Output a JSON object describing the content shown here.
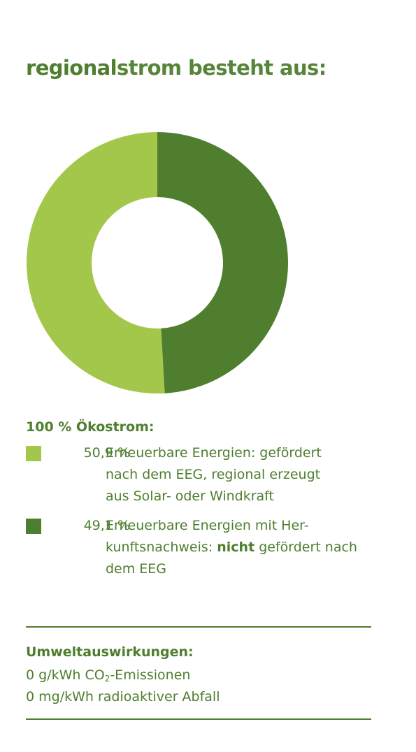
{
  "title": {
    "bold": "regional",
    "rest": "strom besteht aus:"
  },
  "colors": {
    "light_green": "#a3c74a",
    "dark_green": "#4e7e2e",
    "text": "#4e7e2e"
  },
  "chart_data": {
    "type": "pie",
    "donut": true,
    "title": "",
    "categories": [
      "Erneuerbare Energien: gefördert nach dem EEG, regional erzeugt aus Solar- oder Windkraft",
      "Erneuerbare Energien mit Herkunftsnachweis: nicht gefördert nach dem EEG"
    ],
    "values": [
      50.9,
      49.1
    ],
    "unit": "%",
    "colors": [
      "#a3c74a",
      "#4e7e2e"
    ]
  },
  "legend": {
    "heading": "100 % Ökostrom:",
    "items": [
      {
        "percent": "50,9 %",
        "line1": "Erneuerbare Energien: gefördert",
        "line2": "nach dem EEG, regional erzeugt",
        "line3": "aus Solar- oder Windkraft"
      },
      {
        "percent": "49,1 %",
        "line1": "Erneuerbare Energien mit Her-",
        "line2a": "kunftsnachweis: ",
        "line2b": "nicht",
        "line2c": " gefördert nach",
        "line3": "dem EEG"
      }
    ]
  },
  "environment": {
    "heading": "Umweltauswirkungen:",
    "co2_prefix": "0 g/kWh CO",
    "co2_sub": "2",
    "co2_suffix": "-Emissionen",
    "waste": "0 mg/kWh radioaktiver Abfall"
  }
}
